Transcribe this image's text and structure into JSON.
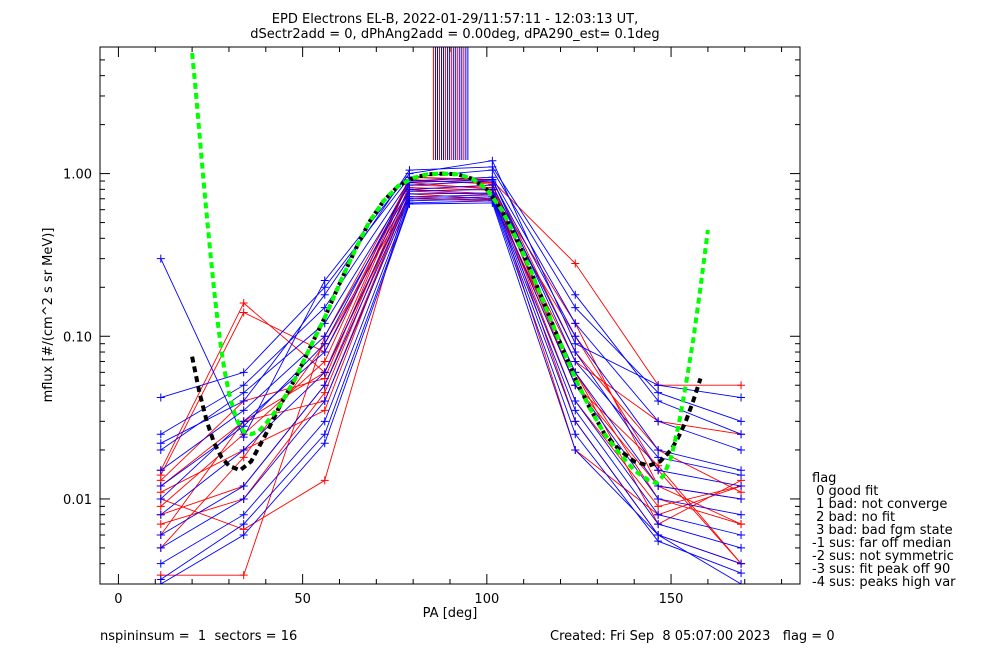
{
  "chart_data": {
    "type": "line",
    "title": "EPD Electrons EL-B, 2022-01-29/11:57:11 - 12:03:13 UT,",
    "subtitle": "dSectr2add = 0, dPhAng2add = 0.00deg, dPA290_est=   0.1deg",
    "xlabel": "PA [deg]",
    "ylabel": "mflux [#/(cm^2 s sr MeV)]",
    "xlim": [
      -5,
      185
    ],
    "ylim": [
      0.003,
      6.0
    ],
    "yscale": "log",
    "xticks": [
      "0",
      "50",
      "100",
      "150"
    ],
    "xtick_values": [
      0,
      50,
      100,
      150
    ],
    "yticks": [
      "0.01",
      "0.10",
      "1.00"
    ],
    "ytick_values": [
      0.01,
      0.1,
      1.0
    ],
    "pa_bins": [
      11.5,
      34,
      56,
      79,
      101.5,
      124,
      146.5,
      169
    ],
    "series_colors": {
      "red": "#ff0000",
      "blue": "#0000ff",
      "green": "#00ff00",
      "black": "#000000"
    },
    "red_series": [
      [
        0.015,
        0.16,
        0.06,
        0.95,
        0.9,
        0.28,
        0.05,
        0.05
      ],
      [
        0.012,
        0.03,
        0.04,
        0.75,
        0.7,
        0.06,
        0.01,
        0.007
      ],
      [
        0.01,
        0.0065,
        0.013,
        0.8,
        0.75,
        0.05,
        0.012,
        0.01
      ],
      [
        0.008,
        0.012,
        0.05,
        0.85,
        0.82,
        0.04,
        0.009,
        0.012
      ],
      [
        0.0034,
        0.0034,
        0.1,
        0.9,
        0.88,
        0.03,
        0.006,
        0.004
      ],
      [
        0.009,
        0.025,
        0.07,
        0.95,
        0.92,
        0.08,
        0.02,
        0.011
      ],
      [
        0.005,
        0.018,
        0.09,
        0.7,
        0.68,
        0.1,
        0.015,
        0.004
      ],
      [
        0.014,
        0.14,
        0.08,
        0.88,
        0.8,
        0.02,
        0.008,
        0.012
      ],
      [
        0.011,
        0.02,
        0.035,
        0.78,
        0.74,
        0.07,
        0.03,
        0.025
      ],
      [
        0.007,
        0.01,
        0.045,
        0.82,
        0.79,
        0.12,
        0.012,
        0.007
      ],
      [
        0.006,
        0.03,
        0.06,
        0.72,
        0.69,
        0.06,
        0.007,
        0.013
      ],
      [
        0.013,
        0.04,
        0.055,
        0.92,
        0.86,
        0.05,
        0.016,
        0.004
      ]
    ],
    "blue_series": [
      [
        0.3,
        0.024,
        0.22,
        1.0,
        1.2,
        0.09,
        0.05,
        0.042
      ],
      [
        0.042,
        0.06,
        0.2,
        0.95,
        1.05,
        0.15,
        0.045,
        0.03
      ],
      [
        0.025,
        0.05,
        0.15,
        0.9,
        0.95,
        0.12,
        0.03,
        0.02
      ],
      [
        0.02,
        0.045,
        0.12,
        0.85,
        0.9,
        0.1,
        0.02,
        0.015
      ],
      [
        0.015,
        0.035,
        0.1,
        0.8,
        0.85,
        0.08,
        0.015,
        0.012
      ],
      [
        0.01,
        0.03,
        0.08,
        0.78,
        0.8,
        0.06,
        0.012,
        0.01
      ],
      [
        0.008,
        0.02,
        0.06,
        0.75,
        0.76,
        0.05,
        0.01,
        0.008
      ],
      [
        0.006,
        0.012,
        0.05,
        0.72,
        0.74,
        0.04,
        0.008,
        0.006
      ],
      [
        0.005,
        0.01,
        0.04,
        0.7,
        0.72,
        0.035,
        0.007,
        0.005
      ],
      [
        0.004,
        0.008,
        0.03,
        0.68,
        0.7,
        0.03,
        0.006,
        0.004
      ],
      [
        0.0032,
        0.007,
        0.025,
        0.66,
        0.68,
        0.025,
        0.0055,
        0.0035
      ],
      [
        0.003,
        0.006,
        0.022,
        0.65,
        0.66,
        0.02,
        0.006,
        0.003
      ],
      [
        0.022,
        0.04,
        0.18,
        1.05,
        1.1,
        0.18,
        0.04,
        0.025
      ],
      [
        0.012,
        0.028,
        0.09,
        0.88,
        0.92,
        0.07,
        0.018,
        0.014
      ]
    ],
    "green_fit_x": [
      20,
      21,
      22,
      23,
      24,
      25,
      26,
      27,
      28,
      29,
      30,
      31,
      32,
      33,
      34,
      36,
      38,
      40,
      44,
      48,
      52,
      56,
      60,
      64,
      68,
      72,
      76,
      80,
      84,
      88,
      92,
      96,
      100,
      104,
      108,
      112,
      116,
      120,
      124,
      128,
      132,
      136,
      140,
      144,
      146,
      148,
      150,
      152,
      154,
      156,
      158,
      160
    ],
    "green_fit_y": [
      5.5,
      3.2,
      1.75,
      0.95,
      0.55,
      0.32,
      0.19,
      0.12,
      0.08,
      0.058,
      0.045,
      0.037,
      0.031,
      0.028,
      0.026,
      0.025,
      0.026,
      0.029,
      0.038,
      0.055,
      0.085,
      0.13,
      0.21,
      0.33,
      0.5,
      0.68,
      0.84,
      0.94,
      0.99,
      1.0,
      0.99,
      0.93,
      0.8,
      0.6,
      0.4,
      0.25,
      0.15,
      0.09,
      0.055,
      0.036,
      0.025,
      0.019,
      0.015,
      0.013,
      0.0125,
      0.014,
      0.018,
      0.028,
      0.05,
      0.095,
      0.2,
      0.45
    ],
    "black_fit_x": [
      20,
      22,
      24,
      26,
      28,
      30,
      33,
      36,
      40,
      44,
      48,
      52,
      56,
      60,
      64,
      68,
      72,
      76,
      80,
      84,
      88,
      92,
      96,
      100,
      104,
      108,
      112,
      116,
      120,
      124,
      128,
      132,
      136,
      140,
      144,
      147,
      150,
      152,
      154,
      156,
      158
    ],
    "black_fit_y": [
      0.075,
      0.045,
      0.03,
      0.022,
      0.018,
      0.016,
      0.015,
      0.017,
      0.025,
      0.038,
      0.055,
      0.085,
      0.13,
      0.21,
      0.33,
      0.5,
      0.68,
      0.84,
      0.94,
      0.99,
      1.0,
      0.99,
      0.93,
      0.8,
      0.6,
      0.4,
      0.25,
      0.15,
      0.09,
      0.055,
      0.036,
      0.025,
      0.02,
      0.017,
      0.016,
      0.017,
      0.02,
      0.024,
      0.03,
      0.04,
      0.055
    ],
    "legend": {
      "title": "flag",
      "entries": [
        " 0 good fit",
        " 1 bad: not converge",
        " 2 bad: no fit",
        " 3 bad: bad fgm state",
        "-1 sus: far off median",
        "-2 sus: not symmetric",
        "-3 sus: fit peak off 90",
        "-4 sus: peaks high var"
      ]
    }
  },
  "footer": {
    "left": "nspininsum =  1  sectors = 16",
    "right": "Created: Fri Sep  8 05:07:00 2023   flag = 0"
  }
}
